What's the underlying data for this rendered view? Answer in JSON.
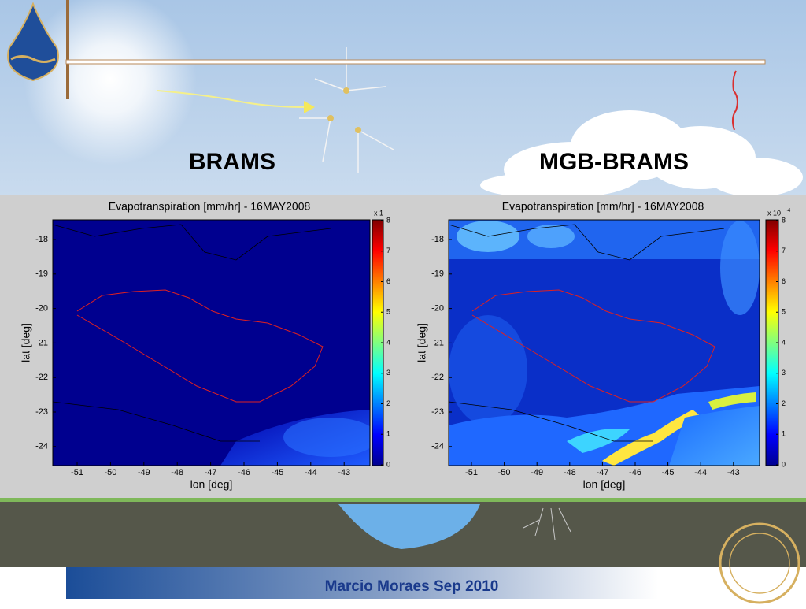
{
  "header": {
    "titles": [
      "BRAMS",
      "MGB-BRAMS"
    ]
  },
  "panels": [
    {
      "title": "Evapotranspiration [mm/hr] - 16MAY2008",
      "xlabel": "lon [deg]",
      "ylabel": "lat [deg]",
      "xticks": [
        -51,
        -50,
        -49,
        -48,
        -47,
        -46,
        -45,
        -44,
        -43
      ],
      "yticks": [
        -18,
        -19,
        -20,
        -21,
        -22,
        -23,
        -24
      ],
      "colorbar": {
        "ticks": [
          0,
          1,
          2,
          3,
          4,
          5,
          6,
          7,
          8
        ],
        "multiplier": "x 1"
      }
    },
    {
      "title": "Evapotranspiration [mm/hr] - 16MAY2008",
      "xlabel": "lon [deg]",
      "ylabel": "lat [deg]",
      "xticks": [
        -51,
        -50,
        -49,
        -48,
        -47,
        -46,
        -45,
        -44,
        -43
      ],
      "yticks": [
        -18,
        -19,
        -20,
        -21,
        -22,
        -23,
        -24
      ],
      "colorbar": {
        "ticks": [
          0,
          1,
          2,
          3,
          4,
          5,
          6,
          7,
          8
        ],
        "multiplier": "x 10",
        "exponent": "-4"
      }
    }
  ],
  "footer": "Marcio Moraes Sep 2010"
}
